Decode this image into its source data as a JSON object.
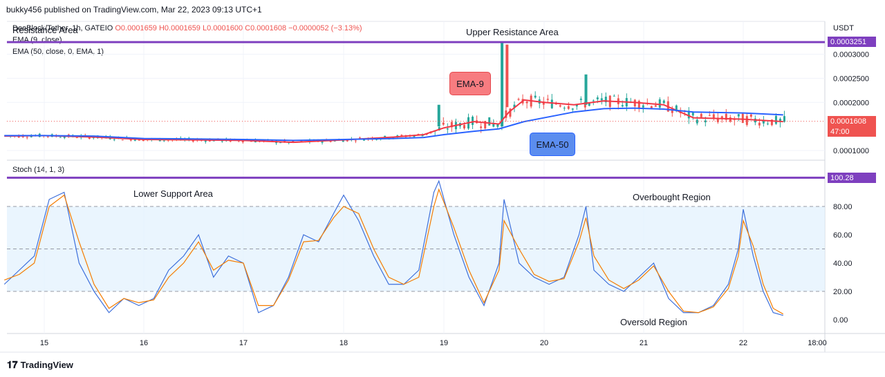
{
  "header": {
    "published": "bukky456 published on TradingView.com, Mar 22, 2023 09:13 UTC+1"
  },
  "legend": {
    "symbol": "DeeBlock/Tether, 1h, GATEIO",
    "ohlc": "O0.0001659  H0.0001659  L0.0001600  C0.0001608  −0.0000052 (−3.13%)",
    "ema9": "EMA (9, close)",
    "ema50": "EMA (50, close, 0, EMA, 1)",
    "stoch": "Stoch (14, 1, 3)"
  },
  "annotations": {
    "resistance_left": "Resistance Area",
    "upper_resistance": "Upper Resistance Area",
    "lower_support": "Lower Support Area",
    "overbought": "Overbought Region",
    "oversold": "Oversold Region",
    "ema9_callout": "EMA-9",
    "ema50_callout": "EMA-50"
  },
  "price_axis": {
    "currency": "USDT",
    "resistance_tag": "0.0003251",
    "last_price_tag": "0.0001608",
    "countdown_tag": "47:00",
    "ticks": [
      "0.0003000",
      "0.0002500",
      "0.0002000",
      "0.0001000"
    ]
  },
  "stoch_axis": {
    "level_tag": "100.28",
    "ticks": [
      "80.00",
      "60.00",
      "40.00",
      "20.00",
      "0.00"
    ]
  },
  "time_axis": [
    "15",
    "16",
    "17",
    "18",
    "19",
    "20",
    "21",
    "22",
    "18:00"
  ],
  "footer": {
    "brand": "TradingView"
  },
  "colors": {
    "ema9": "#f23645",
    "ema50": "#2962ff",
    "level_line": "#7e3fbf",
    "up_candle": "#26a69a",
    "down_candle": "#ef5350",
    "stoch_k": "#3d6fdb",
    "stoch_d": "#f57c00",
    "stoch_band": "#e3f2fd",
    "callout_ema9_bg": "#f77c80",
    "callout_ema50_bg": "#5b8def"
  },
  "chart_data": [
    {
      "type": "line",
      "title": "DeeBlock/Tether, 1h, GATEIO",
      "ylim": [
        5e-05,
        0.00036
      ],
      "x_labels": [
        "15",
        "16",
        "17",
        "18",
        "19",
        "20",
        "21",
        "22"
      ],
      "resistance_level": 0.0003251,
      "last_close": 0.0001608,
      "series": [
        {
          "name": "EMA (9, close)",
          "x": [
            14.6,
            15.0,
            15.5,
            16.0,
            16.5,
            17.0,
            17.5,
            18.0,
            18.5,
            18.8,
            19.0,
            19.3,
            19.55,
            19.65,
            19.8,
            20.0,
            20.3,
            20.6,
            20.9,
            21.2,
            21.5,
            22.0,
            22.4
          ],
          "values": [
            0.00013,
            0.000131,
            0.000128,
            0.000123,
            0.000122,
            0.000121,
            0.000117,
            0.000122,
            0.000128,
            0.000133,
            0.000147,
            0.00016,
            0.000155,
            0.00018,
            0.000205,
            0.0002,
            0.000195,
            0.000203,
            0.0002,
            0.000195,
            0.000168,
            0.000165,
            0.00016
          ]
        },
        {
          "name": "EMA (50, close, 0, EMA, 1)",
          "x": [
            14.6,
            15.0,
            15.5,
            16.0,
            16.5,
            17.0,
            17.5,
            18.0,
            18.5,
            18.8,
            19.0,
            19.3,
            19.55,
            19.8,
            20.0,
            20.3,
            20.6,
            20.9,
            21.2,
            21.5,
            22.0,
            22.4
          ],
          "values": [
            0.000131,
            0.000131,
            0.00013,
            0.000125,
            0.000124,
            0.000123,
            0.000121,
            0.000123,
            0.000125,
            0.000127,
            0.000133,
            0.00014,
            0.000145,
            0.00016,
            0.000168,
            0.00018,
            0.000187,
            0.000188,
            0.000186,
            0.00018,
            0.000178,
            0.000174
          ]
        }
      ]
    },
    {
      "type": "line",
      "title": "Stoch (14, 1, 3)",
      "ylim": [
        -5,
        105
      ],
      "levels": [
        80,
        50,
        20
      ],
      "series": [
        {
          "name": "%K",
          "x": [
            14.6,
            14.75,
            14.9,
            15.05,
            15.2,
            15.35,
            15.5,
            15.65,
            15.8,
            15.95,
            16.1,
            16.25,
            16.4,
            16.55,
            16.7,
            16.85,
            17.0,
            17.15,
            17.3,
            17.45,
            17.6,
            17.75,
            17.9,
            18.0,
            18.15,
            18.3,
            18.45,
            18.6,
            18.75,
            18.9,
            18.95,
            19.1,
            19.25,
            19.4,
            19.55,
            19.6,
            19.75,
            19.9,
            20.05,
            20.2,
            20.35,
            20.42,
            20.5,
            20.65,
            20.8,
            20.95,
            21.1,
            21.25,
            21.4,
            21.55,
            21.7,
            21.85,
            21.95,
            22.0,
            22.1,
            22.2,
            22.3,
            22.4
          ],
          "values": [
            25,
            35,
            45,
            85,
            90,
            40,
            20,
            5,
            15,
            10,
            15,
            35,
            45,
            60,
            30,
            45,
            40,
            5,
            10,
            30,
            60,
            55,
            75,
            88,
            70,
            45,
            25,
            25,
            35,
            90,
            98,
            60,
            30,
            10,
            40,
            85,
            40,
            30,
            25,
            30,
            60,
            80,
            35,
            25,
            20,
            30,
            40,
            15,
            5,
            5,
            10,
            25,
            50,
            78,
            45,
            20,
            5,
            3
          ]
        },
        {
          "name": "%D",
          "x": [
            14.6,
            14.75,
            14.9,
            15.05,
            15.2,
            15.35,
            15.5,
            15.65,
            15.8,
            15.95,
            16.1,
            16.25,
            16.4,
            16.55,
            16.7,
            16.85,
            17.0,
            17.15,
            17.3,
            17.45,
            17.6,
            17.75,
            17.9,
            18.0,
            18.15,
            18.3,
            18.45,
            18.6,
            18.75,
            18.9,
            18.95,
            19.1,
            19.25,
            19.4,
            19.55,
            19.6,
            19.75,
            19.9,
            20.05,
            20.2,
            20.35,
            20.42,
            20.5,
            20.65,
            20.8,
            20.95,
            21.1,
            21.25,
            21.4,
            21.55,
            21.7,
            21.85,
            21.95,
            22.0,
            22.1,
            22.2,
            22.3,
            22.4
          ],
          "values": [
            28,
            32,
            40,
            80,
            88,
            55,
            25,
            8,
            15,
            12,
            14,
            30,
            40,
            55,
            35,
            42,
            40,
            10,
            10,
            28,
            55,
            56,
            72,
            80,
            75,
            50,
            30,
            25,
            30,
            80,
            92,
            65,
            35,
            12,
            35,
            70,
            50,
            32,
            27,
            29,
            55,
            72,
            45,
            28,
            22,
            28,
            38,
            20,
            6,
            5,
            9,
            22,
            45,
            70,
            52,
            25,
            8,
            4
          ]
        }
      ]
    }
  ]
}
